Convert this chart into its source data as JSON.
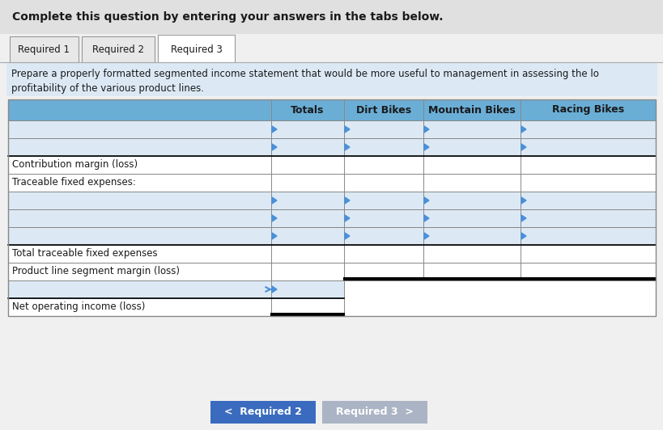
{
  "header_text": "Complete this question by entering your answers in the tabs below.",
  "tabs": [
    "Required 1",
    "Required 2",
    "Required 3"
  ],
  "active_tab": "Required 3",
  "instruction_line1": "Prepare a properly formatted segmented income statement that would be more useful to management in assessing the lo",
  "instruction_line2": "profitability of the various product lines.",
  "col_headers": [
    "Totals",
    "Dirt Bikes",
    "Mountain Bikes",
    "Racing Bikes"
  ],
  "row_labels": [
    {
      "text": "",
      "blue": true,
      "partial": false
    },
    {
      "text": "",
      "blue": true,
      "partial": false
    },
    {
      "text": "Contribution margin (loss)",
      "blue": false,
      "partial": false
    },
    {
      "text": "Traceable fixed expenses:",
      "blue": false,
      "partial": false
    },
    {
      "text": "",
      "blue": true,
      "partial": false
    },
    {
      "text": "",
      "blue": true,
      "partial": false
    },
    {
      "text": "",
      "blue": true,
      "partial": false
    },
    {
      "text": "Total traceable fixed expenses",
      "blue": false,
      "partial": false
    },
    {
      "text": "Product line segment margin (loss)",
      "blue": false,
      "partial": false
    },
    {
      "text": "",
      "blue": true,
      "partial": true
    },
    {
      "text": "Net operating income (loss)",
      "blue": false,
      "partial": true
    }
  ],
  "nav_btn_left_text": "<  Required 2",
  "nav_btn_right_text": "Required 3  >",
  "bg_color": "#f0f0f0",
  "header_bg": "#e0e0e0",
  "instruction_bg": "#dce9f5",
  "table_header_bg": "#6aaed6",
  "blue_row_bg": "#dce9f5",
  "white_row_bg": "#ffffff",
  "nav_btn_left_bg": "#3a6bbf",
  "nav_btn_right_bg": "#aab4c4",
  "tab_active_bg": "#ffffff",
  "tab_inactive_bg": "#e8e8e8",
  "blue_indicator_color": "#4a90d9",
  "cell_border_color": "#888888",
  "black_border_color": "#000000",
  "double_line_color": "#222222"
}
